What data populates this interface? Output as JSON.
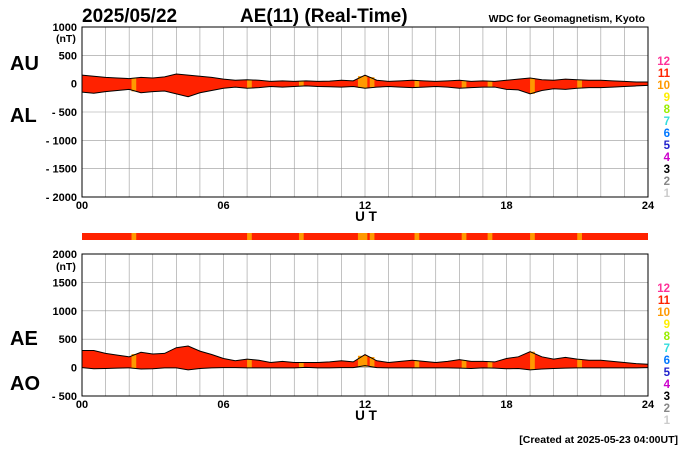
{
  "header": {
    "date": "2025/05/22",
    "title": "AE(11) (Real-Time)",
    "source": "WDC for Geomagnetism, Kyoto"
  },
  "footer": {
    "created": "[Created at 2025-05-23 04:00UT]"
  },
  "legend": {
    "levels": [
      {
        "label": "12",
        "color": "#ff3399"
      },
      {
        "label": "11",
        "color": "#ff2200"
      },
      {
        "label": "10",
        "color": "#ff9900"
      },
      {
        "label": "9",
        "color": "#ffee00"
      },
      {
        "label": "8",
        "color": "#99ee00"
      },
      {
        "label": "7",
        "color": "#33dddd"
      },
      {
        "label": "6",
        "color": "#0077ff"
      },
      {
        "label": "5",
        "color": "#2222cc"
      },
      {
        "label": "4",
        "color": "#cc00cc"
      },
      {
        "label": "3",
        "color": "#000000"
      },
      {
        "label": "2",
        "color": "#888888"
      },
      {
        "label": "1",
        "color": "#cccccc"
      }
    ]
  },
  "colors": {
    "main_fill": "#ff2200",
    "highlight": "#ff9900",
    "grid": "#999999",
    "text": "#000000"
  },
  "station_bar": {
    "base_color": "#ff2200",
    "highlight_color": "#ff9900",
    "highlights": [
      [
        2.1,
        2.3
      ],
      [
        7.0,
        7.2
      ],
      [
        9.2,
        9.4
      ],
      [
        11.7,
        12.1
      ],
      [
        12.2,
        12.4
      ],
      [
        14.1,
        14.3
      ],
      [
        16.1,
        16.3
      ],
      [
        17.2,
        17.4
      ],
      [
        19.0,
        19.2
      ],
      [
        21.0,
        21.2
      ]
    ]
  },
  "chart_data": [
    {
      "type": "area",
      "unit": "(nT)",
      "xlabel": "U T",
      "xlim": [
        0,
        24
      ],
      "ylim": [
        -2000,
        1000
      ],
      "xticks": [
        "00",
        "06",
        "12",
        "18",
        "24"
      ],
      "yticks": [
        "1000",
        "500",
        "0",
        "- 500",
        "- 1000",
        "- 1500",
        "- 2000"
      ],
      "side_labels": [
        "AU",
        "AL"
      ],
      "x": [
        0,
        0.5,
        1,
        1.5,
        2,
        2.5,
        3,
        3.5,
        4,
        4.5,
        5,
        5.5,
        6,
        6.5,
        7,
        7.5,
        8,
        8.5,
        9,
        9.5,
        10,
        10.5,
        11,
        11.5,
        12,
        12.5,
        13,
        13.5,
        14,
        14.5,
        15,
        15.5,
        16,
        16.5,
        17,
        17.5,
        18,
        18.5,
        19,
        19.5,
        20,
        20.5,
        21,
        21.5,
        22,
        22.5,
        23,
        23.5,
        24
      ],
      "series": [
        {
          "name": "AU",
          "values": [
            150,
            130,
            110,
            100,
            90,
            110,
            100,
            120,
            170,
            150,
            130,
            110,
            80,
            60,
            70,
            60,
            40,
            50,
            40,
            50,
            40,
            45,
            60,
            50,
            150,
            60,
            40,
            50,
            60,
            50,
            40,
            50,
            60,
            40,
            50,
            40,
            60,
            80,
            100,
            70,
            60,
            80,
            70,
            60,
            60,
            50,
            40,
            30,
            30
          ]
        },
        {
          "name": "AL",
          "values": [
            -150,
            -170,
            -140,
            -120,
            -100,
            -160,
            -140,
            -130,
            -180,
            -230,
            -160,
            -120,
            -80,
            -60,
            -80,
            -70,
            -50,
            -60,
            -50,
            -40,
            -50,
            -55,
            -60,
            -50,
            -80,
            -60,
            -50,
            -60,
            -70,
            -60,
            -50,
            -60,
            -80,
            -70,
            -60,
            -60,
            -100,
            -110,
            -180,
            -120,
            -90,
            -100,
            -80,
            -70,
            -70,
            -60,
            -50,
            -40,
            -30
          ]
        }
      ]
    },
    {
      "type": "area",
      "unit": "(nT)",
      "xlabel": "U T",
      "xlim": [
        0,
        24
      ],
      "ylim": [
        -500,
        2000
      ],
      "xticks": [
        "00",
        "06",
        "12",
        "18",
        "24"
      ],
      "yticks": [
        "2000",
        "1500",
        "1000",
        "500",
        "0",
        "- 500"
      ],
      "side_labels": [
        "AE",
        "AO"
      ],
      "x": [
        0,
        0.5,
        1,
        1.5,
        2,
        2.5,
        3,
        3.5,
        4,
        4.5,
        5,
        5.5,
        6,
        6.5,
        7,
        7.5,
        8,
        8.5,
        9,
        9.5,
        10,
        10.5,
        11,
        11.5,
        12,
        12.5,
        13,
        13.5,
        14,
        14.5,
        15,
        15.5,
        16,
        16.5,
        17,
        17.5,
        18,
        18.5,
        19,
        19.5,
        20,
        20.5,
        21,
        21.5,
        22,
        22.5,
        23,
        23.5,
        24
      ],
      "series": [
        {
          "name": "AE",
          "values": [
            300,
            300,
            250,
            220,
            190,
            270,
            240,
            250,
            350,
            380,
            290,
            230,
            160,
            120,
            150,
            130,
            90,
            110,
            90,
            90,
            90,
            100,
            120,
            100,
            230,
            120,
            90,
            110,
            130,
            110,
            90,
            110,
            140,
            110,
            110,
            100,
            160,
            190,
            280,
            190,
            150,
            180,
            150,
            130,
            130,
            110,
            90,
            70,
            60
          ]
        },
        {
          "name": "AO",
          "values": [
            0,
            -20,
            -15,
            -10,
            -5,
            -25,
            -20,
            -5,
            -5,
            -40,
            -15,
            -5,
            0,
            0,
            -5,
            -5,
            -5,
            -5,
            -5,
            5,
            -5,
            -5,
            0,
            0,
            35,
            0,
            -5,
            -5,
            -5,
            -5,
            -5,
            -5,
            -10,
            -15,
            -5,
            -10,
            -20,
            -15,
            -40,
            -25,
            -15,
            -10,
            -5,
            -5,
            -5,
            -5,
            -5,
            -5,
            0
          ]
        }
      ]
    }
  ]
}
